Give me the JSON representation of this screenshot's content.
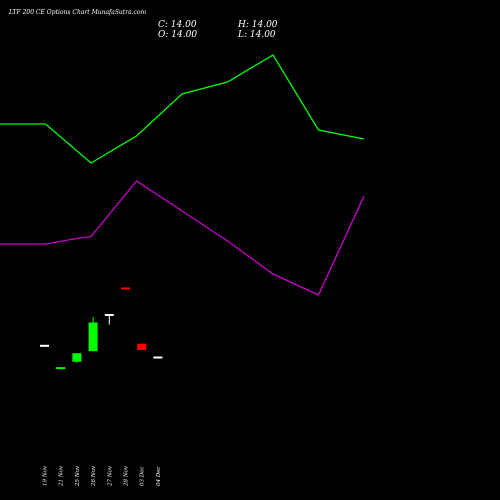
{
  "title": "LTF 200  CE Options  Chart MunafaSutra.com",
  "ohlc": {
    "o_label": "O:",
    "o_value": "14.00",
    "h_label": "H:",
    "h_value": "14.00",
    "l_label": "L:",
    "l_value": "14.00",
    "c_label": "C:",
    "c_value": "14.00"
  },
  "colors": {
    "background": "#000000",
    "green_line": "#00ff00",
    "magenta_line": "#cc00cc",
    "bull_candle": "#00ff00",
    "bear_candle": "#ff0000",
    "doji": "#ffffff",
    "text": "#ffffff"
  },
  "chart_data": {
    "type": "candlestick",
    "title": "LTF 200  CE Options  Chart MunafaSutra.com",
    "price_range": [
      10,
      26
    ],
    "candles": [
      {
        "date": "19 Nov",
        "open": 15.1,
        "high": 15.1,
        "low": 15.1,
        "close": 15.1
      },
      {
        "date": "21 Nov",
        "open": 13.0,
        "high": 13.0,
        "low": 13.0,
        "close": 13.0
      },
      {
        "date": "25 Nov",
        "open": 13.6,
        "high": 14.4,
        "low": 13.5,
        "close": 14.4
      },
      {
        "date": "26 Nov",
        "open": 14.6,
        "high": 17.8,
        "low": 14.6,
        "close": 17.3
      },
      {
        "date": "27 Nov",
        "open": 18.0,
        "high": 18.0,
        "low": 17.1,
        "close": 18.0
      },
      {
        "date": "28 Nov",
        "open": 20.5,
        "high": 20.5,
        "low": 20.5,
        "close": 20.5
      },
      {
        "date": "03 Dec",
        "open": 15.3,
        "high": 15.3,
        "low": 14.7,
        "close": 14.7
      },
      {
        "date": "04 Dec",
        "open": 14.0,
        "high": 14.0,
        "low": 14.0,
        "close": 14.0
      }
    ],
    "green_line_points": [
      {
        "x": 0,
        "y": 0.18
      },
      {
        "x": 1,
        "y": 0.18
      },
      {
        "x": 2,
        "y": 0.31
      },
      {
        "x": 3,
        "y": 0.22
      },
      {
        "x": 4,
        "y": 0.08
      },
      {
        "x": 5,
        "y": 0.04
      },
      {
        "x": 6,
        "y": -0.05
      },
      {
        "x": 7,
        "y": 0.2
      },
      {
        "x": 8,
        "y": 0.23
      }
    ],
    "magenta_line_points": [
      {
        "x": 0,
        "y": 0.58
      },
      {
        "x": 1,
        "y": 0.58
      },
      {
        "x": 1.75,
        "y": 0.56
      },
      {
        "x": 2,
        "y": 0.555
      },
      {
        "x": 3,
        "y": 0.37
      },
      {
        "x": 4,
        "y": 0.47
      },
      {
        "x": 5,
        "y": 0.57
      },
      {
        "x": 6,
        "y": 0.68
      },
      {
        "x": 7,
        "y": 0.75
      },
      {
        "x": 8,
        "y": 0.42
      }
    ]
  }
}
